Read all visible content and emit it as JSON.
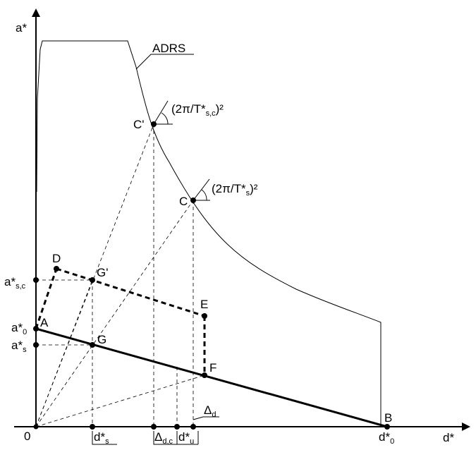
{
  "axes": {
    "y_label": "a*",
    "x_label": "d*"
  },
  "curve_label": "ADRS",
  "slope_labels": {
    "c_prime": {
      "main": "(2π/T*",
      "sub": "s,c",
      "end": ")²"
    },
    "c": {
      "main": "(2π/T*",
      "sub": "s",
      "end": ")²"
    }
  },
  "points": {
    "origin": "0",
    "A": "A",
    "B": "B",
    "C": "C",
    "C_prime": "C'",
    "D": "D",
    "E": "E",
    "F": "F",
    "G": "G",
    "G_prime": "G'"
  },
  "y_ticks": {
    "a_sc": {
      "main": "a*",
      "sub": "s,c"
    },
    "a_0": {
      "main": "a*",
      "sub": "0"
    },
    "a_s": {
      "main": "a*",
      "sub": "s"
    }
  },
  "x_ticks": {
    "d_s": {
      "main": "d*",
      "sub": "s"
    },
    "delta_dc": {
      "main": "Δ",
      "sub": "d,c"
    },
    "d_u": {
      "main": "d*",
      "sub": "u"
    },
    "d_0": {
      "main": "d*",
      "sub": "0"
    },
    "delta_d": {
      "main": "Δ",
      "sub": "d"
    }
  }
}
